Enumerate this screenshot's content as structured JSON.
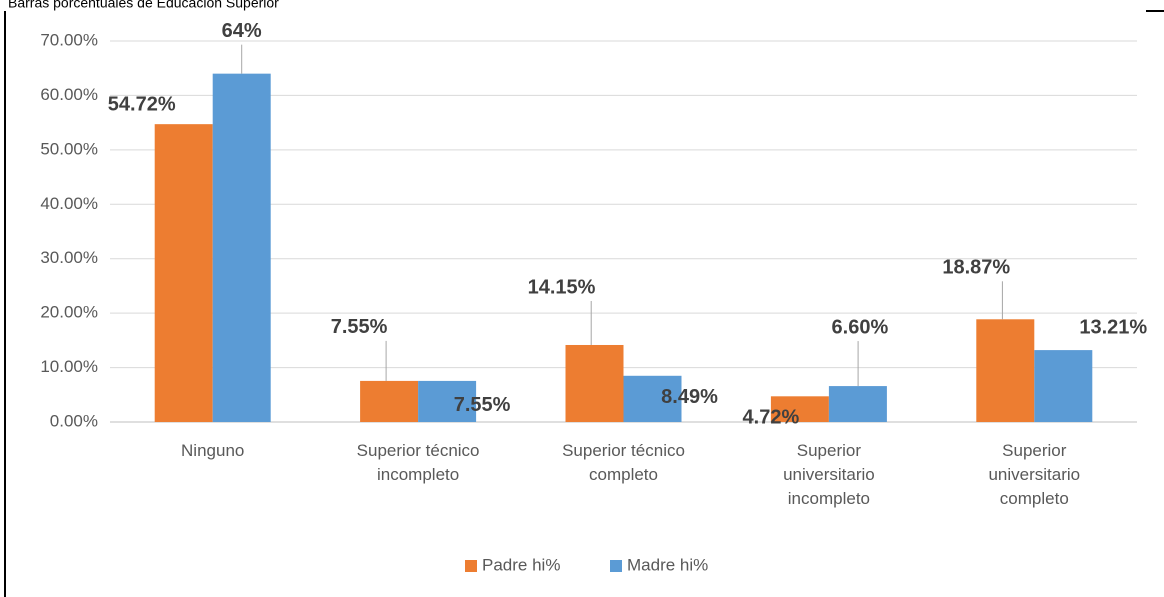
{
  "chart_data": {
    "type": "bar",
    "title": "Barras porcentuales de Educación Superior",
    "categories": [
      "Ninguno",
      "Superior técnico incompleto",
      "Superior técnico completo",
      "Superior universitario incompleto",
      "Superior universitario completo"
    ],
    "series": [
      {
        "name": "Padre hi%",
        "color": "#ed7d31",
        "values": [
          54.72,
          7.55,
          14.15,
          4.72,
          18.87
        ],
        "value_labels": [
          "54.72%",
          "7.55%",
          "14.15%",
          "4.72%",
          "18.87%"
        ]
      },
      {
        "name": "Madre hi%",
        "color": "#5b9bd5",
        "values": [
          64,
          7.55,
          8.49,
          6.6,
          13.21
        ],
        "value_labels": [
          "64%",
          "7.55%",
          "8.49%",
          "6.60%",
          "13.21%"
        ]
      }
    ],
    "ylim": [
      0,
      70
    ],
    "yticks": [
      {
        "value": 0,
        "label": "0.00%"
      },
      {
        "value": 10,
        "label": "10.00%"
      },
      {
        "value": 20,
        "label": "20.00%"
      },
      {
        "value": 30,
        "label": "30.00%"
      },
      {
        "value": 40,
        "label": "40.00%"
      },
      {
        "value": 50,
        "label": "50.00%"
      },
      {
        "value": 60,
        "label": "60.00%"
      },
      {
        "value": 70,
        "label": "70.00%"
      }
    ],
    "grid": true,
    "legend": "bottom"
  }
}
